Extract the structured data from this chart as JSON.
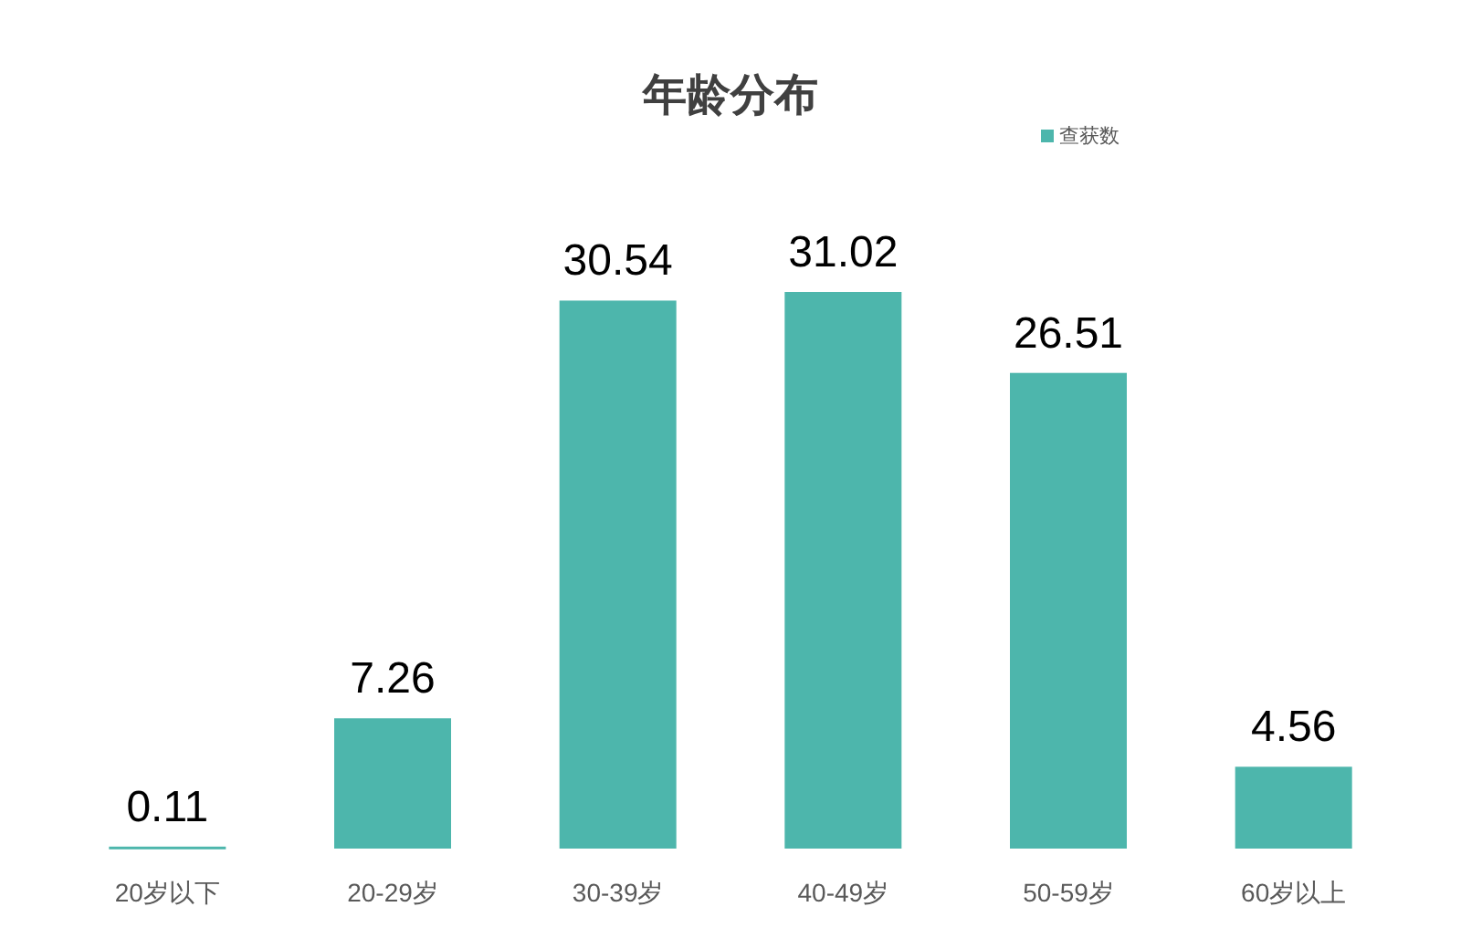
{
  "chart_data": {
    "type": "bar",
    "title": "年龄分布",
    "categories": [
      "20岁以下",
      "20-29岁",
      "30-39岁",
      "40-49岁",
      "50-59岁",
      "60岁以上"
    ],
    "series": [
      {
        "name": "查获数",
        "color": "#4db6ac",
        "values": [
          0.11,
          7.26,
          30.54,
          31.02,
          26.51,
          4.56
        ]
      }
    ],
    "data_labels": true,
    "legend": "top right"
  }
}
